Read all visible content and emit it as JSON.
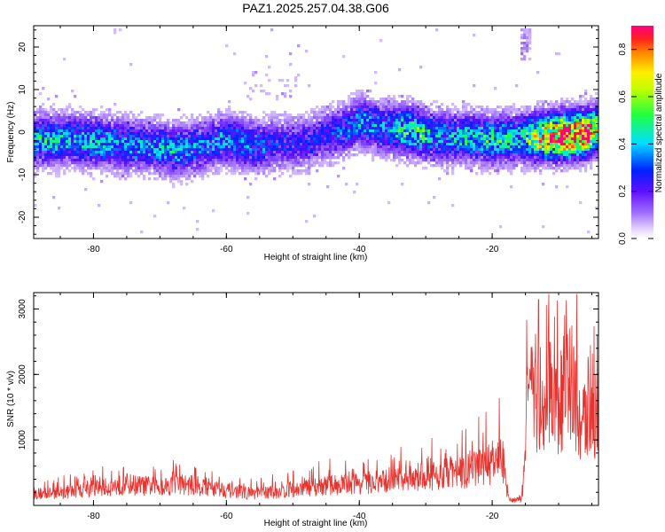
{
  "title": "PAZ1.2025.257.04.38.G06",
  "chart_data": [
    {
      "type": "heatmap",
      "xlabel": "Height of straight line (km)",
      "ylabel": "Frequency (Hz)",
      "xlim": [
        -89,
        -4
      ],
      "ylim": [
        -25,
        25
      ],
      "x_ticks": [
        -80,
        -60,
        -40,
        -20
      ],
      "x_tick_labels": [
        "-80",
        "-60",
        "-40",
        "-20"
      ],
      "y_ticks": [
        20,
        10,
        0,
        -10,
        -20
      ],
      "y_tick_labels": [
        "20",
        "10",
        "0",
        "-10",
        "-20"
      ],
      "colorbar": {
        "label": "Normalized spectral amplitude",
        "range": [
          0,
          0.9
        ],
        "ticks": [
          0.0,
          0.2,
          0.4,
          0.6,
          0.8
        ],
        "tick_labels": [
          "0.0",
          "0.2",
          "0.4",
          "0.6",
          "0.8"
        ],
        "colormap": "rainbow (purple → blue → cyan → green → yellow → orange → red)"
      },
      "ridge": [
        {
          "x": -88,
          "f": -1.5,
          "a": 0.35
        },
        {
          "x": -84,
          "f": -1.5,
          "a": 0.32
        },
        {
          "x": -80,
          "f": -2,
          "a": 0.35
        },
        {
          "x": -76,
          "f": -2.5,
          "a": 0.3
        },
        {
          "x": -72,
          "f": -3,
          "a": 0.28
        },
        {
          "x": -68,
          "f": -4,
          "a": 0.33
        },
        {
          "x": -64,
          "f": -3,
          "a": 0.27
        },
        {
          "x": -60,
          "f": -1.5,
          "a": 0.3
        },
        {
          "x": -56,
          "f": -3,
          "a": 0.26
        },
        {
          "x": -52,
          "f": -2.5,
          "a": 0.2
        },
        {
          "x": -48,
          "f": -2,
          "a": 0.2
        },
        {
          "x": -44,
          "f": 0,
          "a": 0.22
        },
        {
          "x": -40,
          "f": 2.5,
          "a": 0.3
        },
        {
          "x": -36,
          "f": 1,
          "a": 0.3
        },
        {
          "x": -32,
          "f": 0.5,
          "a": 0.45
        },
        {
          "x": -28,
          "f": -1,
          "a": 0.3
        },
        {
          "x": -24,
          "f": -1,
          "a": 0.35
        },
        {
          "x": -20,
          "f": -1.5,
          "a": 0.4
        },
        {
          "x": -16,
          "f": -1,
          "a": 0.35
        },
        {
          "x": -12,
          "f": -0.8,
          "a": 0.7
        },
        {
          "x": -9,
          "f": -0.5,
          "a": 0.9
        },
        {
          "x": -6,
          "f": 0,
          "a": 0.75
        },
        {
          "x": -4,
          "f": 1,
          "a": 0.5
        }
      ]
    },
    {
      "type": "line",
      "xlabel": "Height of straight line (km)",
      "ylabel": "SNR (10 * v/v)",
      "xlim": [
        -89,
        -4
      ],
      "ylim": [
        0,
        3250
      ],
      "x_ticks": [
        -80,
        -60,
        -40,
        -20
      ],
      "x_tick_labels": [
        "-80",
        "-60",
        "-40",
        "-20"
      ],
      "y_ticks": [
        1000,
        2000,
        3000
      ],
      "y_tick_labels": [
        "1000",
        "2000",
        "3000"
      ],
      "color": "#e8322e",
      "x": [
        -89,
        -86,
        -83,
        -80,
        -77,
        -75,
        -73,
        -70,
        -67,
        -65,
        -62,
        -59,
        -56,
        -53,
        -50,
        -47,
        -45,
        -42,
        -39,
        -36,
        -33,
        -30,
        -28,
        -26,
        -24,
        -22,
        -20,
        -18.5,
        -17.5,
        -16.5,
        -15.5,
        -14.5,
        -13.5,
        -12,
        -11,
        -10.5,
        -9.5,
        -8.5,
        -8,
        -7.5,
        -6.5,
        -5.5,
        -5,
        -4
      ],
      "values": [
        250,
        250,
        300,
        350,
        400,
        450,
        420,
        400,
        450,
        420,
        380,
        300,
        250,
        280,
        320,
        380,
        420,
        450,
        470,
        500,
        550,
        600,
        650,
        700,
        700,
        800,
        900,
        1000,
        120,
        100,
        150,
        2600,
        1900,
        2000,
        2700,
        2000,
        2300,
        3200,
        2500,
        2200,
        1500,
        2200,
        1700,
        2000
      ]
    }
  ]
}
